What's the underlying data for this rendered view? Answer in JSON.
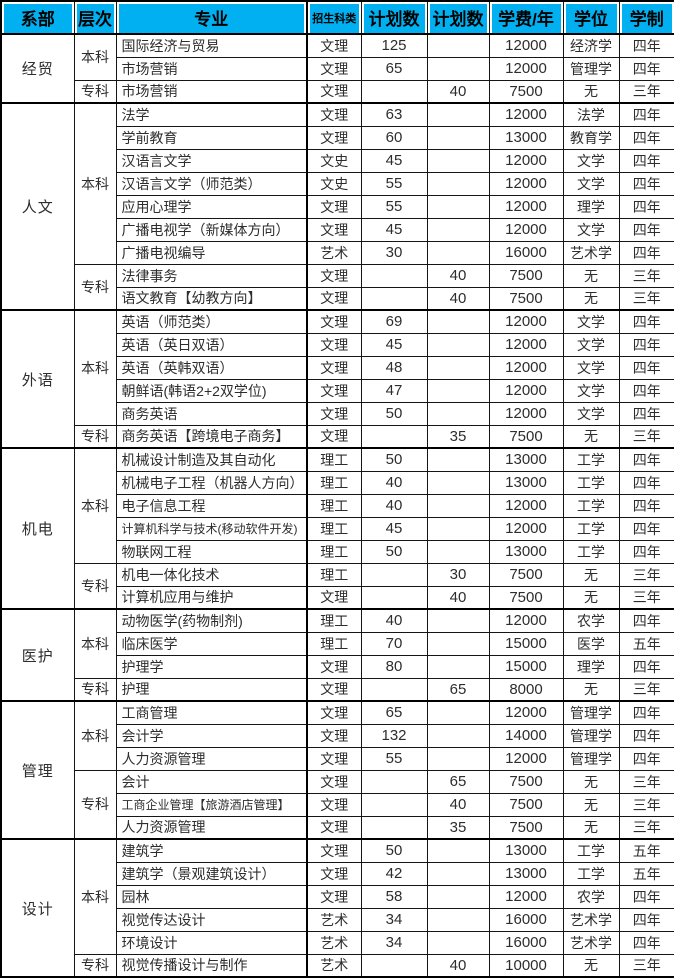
{
  "colors": {
    "header_bg": "#00b0f0",
    "border": "#000000",
    "text": "#2d2d2d"
  },
  "table": {
    "header": {
      "dept": "系部",
      "level": "层次",
      "major": "专业",
      "category": "招生科类",
      "plan_bk": "计划数",
      "plan_zk": "计划数",
      "tuition": "学费/年",
      "degree": "学位",
      "duration": "学制"
    },
    "sections": [
      {
        "dept": "经贸",
        "groups": [
          {
            "level": "本科",
            "rows": [
              {
                "major": "国际经济与贸易",
                "category": "文理",
                "plan_bk": "125",
                "plan_zk": "",
                "tuition": "12000",
                "degree": "经济学",
                "duration": "四年"
              },
              {
                "major": "市场营销",
                "category": "文理",
                "plan_bk": "65",
                "plan_zk": "",
                "tuition": "12000",
                "degree": "管理学",
                "duration": "四年"
              }
            ]
          },
          {
            "level": "专科",
            "rows": [
              {
                "major": "市场营销",
                "category": "文理",
                "plan_bk": "",
                "plan_zk": "40",
                "tuition": "7500",
                "degree": "无",
                "duration": "三年"
              }
            ]
          }
        ]
      },
      {
        "dept": "人文",
        "groups": [
          {
            "level": "本科",
            "rows": [
              {
                "major": "法学",
                "category": "文理",
                "plan_bk": "63",
                "plan_zk": "",
                "tuition": "12000",
                "degree": "法学",
                "duration": "四年"
              },
              {
                "major": "学前教育",
                "category": "文理",
                "plan_bk": "60",
                "plan_zk": "",
                "tuition": "13000",
                "degree": "教育学",
                "duration": "四年"
              },
              {
                "major": "汉语言文学",
                "category": "文史",
                "plan_bk": "45",
                "plan_zk": "",
                "tuition": "12000",
                "degree": "文学",
                "duration": "四年"
              },
              {
                "major": "汉语言文学（师范类）",
                "category": "文史",
                "plan_bk": "55",
                "plan_zk": "",
                "tuition": "12000",
                "degree": "文学",
                "duration": "四年"
              },
              {
                "major": "应用心理学",
                "category": "文理",
                "plan_bk": "55",
                "plan_zk": "",
                "tuition": "12000",
                "degree": "理学",
                "duration": "四年"
              },
              {
                "major": "广播电视学（新媒体方向）",
                "category": "文理",
                "plan_bk": "45",
                "plan_zk": "",
                "tuition": "12000",
                "degree": "文学",
                "duration": "四年"
              },
              {
                "major": "广播电视编导",
                "category": "艺术",
                "plan_bk": "30",
                "plan_zk": "",
                "tuition": "16000",
                "degree": "艺术学",
                "duration": "四年"
              }
            ]
          },
          {
            "level": "专科",
            "rows": [
              {
                "major": "法律事务",
                "category": "文理",
                "plan_bk": "",
                "plan_zk": "40",
                "tuition": "7500",
                "degree": "无",
                "duration": "三年"
              },
              {
                "major": "语文教育【幼教方向】",
                "category": "文理",
                "plan_bk": "",
                "plan_zk": "40",
                "tuition": "7500",
                "degree": "无",
                "duration": "三年"
              }
            ]
          }
        ]
      },
      {
        "dept": "外语",
        "groups": [
          {
            "level": "本科",
            "rows": [
              {
                "major": "英语（师范类）",
                "category": "文理",
                "plan_bk": "69",
                "plan_zk": "",
                "tuition": "12000",
                "degree": "文学",
                "duration": "四年"
              },
              {
                "major": "英语（英日双语）",
                "category": "文理",
                "plan_bk": "45",
                "plan_zk": "",
                "tuition": "12000",
                "degree": "文学",
                "duration": "四年"
              },
              {
                "major": "英语（英韩双语）",
                "category": "文理",
                "plan_bk": "48",
                "plan_zk": "",
                "tuition": "12000",
                "degree": "文学",
                "duration": "四年"
              },
              {
                "major": "朝鲜语(韩语2+2双学位)",
                "category": "文理",
                "plan_bk": "47",
                "plan_zk": "",
                "tuition": "12000",
                "degree": "文学",
                "duration": "四年"
              },
              {
                "major": "商务英语",
                "category": "文理",
                "plan_bk": "50",
                "plan_zk": "",
                "tuition": "12000",
                "degree": "文学",
                "duration": "四年"
              }
            ]
          },
          {
            "level": "专科",
            "rows": [
              {
                "major": "商务英语【跨境电子商务】",
                "category": "文理",
                "plan_bk": "",
                "plan_zk": "35",
                "tuition": "7500",
                "degree": "无",
                "duration": "三年"
              }
            ]
          }
        ]
      },
      {
        "dept": "机电",
        "groups": [
          {
            "level": "本科",
            "rows": [
              {
                "major": "机械设计制造及其自动化",
                "category": "理工",
                "plan_bk": "50",
                "plan_zk": "",
                "tuition": "13000",
                "degree": "工学",
                "duration": "四年"
              },
              {
                "major": "机械电子工程（机器人方向）",
                "category": "理工",
                "plan_bk": "40",
                "plan_zk": "",
                "tuition": "13000",
                "degree": "工学",
                "duration": "四年"
              },
              {
                "major": "电子信息工程",
                "category": "理工",
                "plan_bk": "40",
                "plan_zk": "",
                "tuition": "12000",
                "degree": "工学",
                "duration": "四年"
              },
              {
                "major": "计算机科学与技术(移动软件开发)",
                "category": "理工",
                "plan_bk": "45",
                "plan_zk": "",
                "tuition": "12000",
                "degree": "工学",
                "duration": "四年"
              },
              {
                "major": "物联网工程",
                "category": "理工",
                "plan_bk": "50",
                "plan_zk": "",
                "tuition": "13000",
                "degree": "工学",
                "duration": "四年"
              }
            ]
          },
          {
            "level": "专科",
            "rows": [
              {
                "major": "机电一体化技术",
                "category": "理工",
                "plan_bk": "",
                "plan_zk": "30",
                "tuition": "7500",
                "degree": "无",
                "duration": "三年"
              },
              {
                "major": "计算机应用与维护",
                "category": "文理",
                "plan_bk": "",
                "plan_zk": "40",
                "tuition": "7500",
                "degree": "无",
                "duration": "三年"
              }
            ]
          }
        ]
      },
      {
        "dept": "医护",
        "groups": [
          {
            "level": "本科",
            "rows": [
              {
                "major": "动物医学(药物制剂)",
                "category": "理工",
                "plan_bk": "40",
                "plan_zk": "",
                "tuition": "12000",
                "degree": "农学",
                "duration": "四年"
              },
              {
                "major": "临床医学",
                "category": "理工",
                "plan_bk": "70",
                "plan_zk": "",
                "tuition": "15000",
                "degree": "医学",
                "duration": "五年"
              },
              {
                "major": "护理学",
                "category": "文理",
                "plan_bk": "80",
                "plan_zk": "",
                "tuition": "15000",
                "degree": "理学",
                "duration": "四年"
              }
            ]
          },
          {
            "level": "专科",
            "rows": [
              {
                "major": "护理",
                "category": "文理",
                "plan_bk": "",
                "plan_zk": "65",
                "tuition": "8000",
                "degree": "无",
                "duration": "三年"
              }
            ]
          }
        ]
      },
      {
        "dept": "管理",
        "groups": [
          {
            "level": "本科",
            "rows": [
              {
                "major": "工商管理",
                "category": "文理",
                "plan_bk": "65",
                "plan_zk": "",
                "tuition": "12000",
                "degree": "管理学",
                "duration": "四年"
              },
              {
                "major": "会计学",
                "category": "文理",
                "plan_bk": "132",
                "plan_zk": "",
                "tuition": "14000",
                "degree": "管理学",
                "duration": "四年"
              },
              {
                "major": "人力资源管理",
                "category": "文理",
                "plan_bk": "55",
                "plan_zk": "",
                "tuition": "12000",
                "degree": "管理学",
                "duration": "四年"
              }
            ]
          },
          {
            "level": "专科",
            "rows": [
              {
                "major": "会计",
                "category": "文理",
                "plan_bk": "",
                "plan_zk": "65",
                "tuition": "7500",
                "degree": "无",
                "duration": "三年"
              },
              {
                "major": "工商企业管理【旅游酒店管理】",
                "category": "文理",
                "plan_bk": "",
                "plan_zk": "40",
                "tuition": "7500",
                "degree": "无",
                "duration": "三年"
              },
              {
                "major": "人力资源管理",
                "category": "文理",
                "plan_bk": "",
                "plan_zk": "35",
                "tuition": "7500",
                "degree": "无",
                "duration": "三年"
              }
            ]
          }
        ]
      },
      {
        "dept": "设计",
        "groups": [
          {
            "level": "本科",
            "rows": [
              {
                "major": "建筑学",
                "category": "文理",
                "plan_bk": "50",
                "plan_zk": "",
                "tuition": "13000",
                "degree": "工学",
                "duration": "五年"
              },
              {
                "major": "建筑学（景观建筑设计）",
                "category": "文理",
                "plan_bk": "42",
                "plan_zk": "",
                "tuition": "13000",
                "degree": "工学",
                "duration": "五年"
              },
              {
                "major": "园林",
                "category": "文理",
                "plan_bk": "58",
                "plan_zk": "",
                "tuition": "12000",
                "degree": "农学",
                "duration": "四年"
              },
              {
                "major": "视觉传达设计",
                "category": "艺术",
                "plan_bk": "34",
                "plan_zk": "",
                "tuition": "16000",
                "degree": "艺术学",
                "duration": "四年"
              },
              {
                "major": "环境设计",
                "category": "艺术",
                "plan_bk": "34",
                "plan_zk": "",
                "tuition": "16000",
                "degree": "艺术学",
                "duration": "四年"
              }
            ]
          },
          {
            "level": "专科",
            "rows": [
              {
                "major": "视觉传播设计与制作",
                "category": "艺术",
                "plan_bk": "",
                "plan_zk": "40",
                "tuition": "10000",
                "degree": "无",
                "duration": "三年"
              }
            ]
          }
        ]
      }
    ]
  }
}
